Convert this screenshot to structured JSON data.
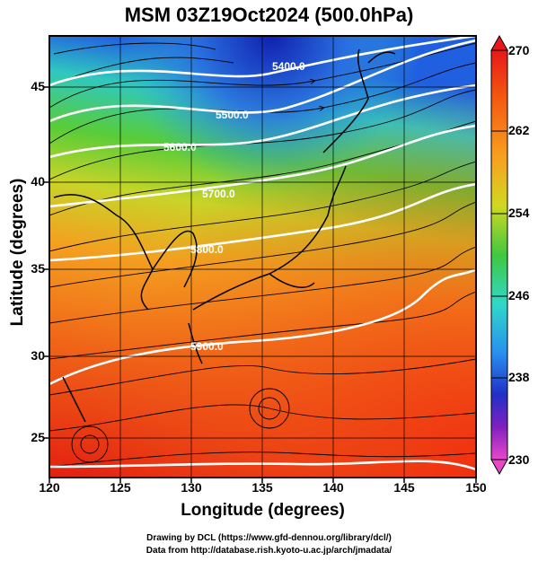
{
  "title": "MSM 03Z19Oct2024 (500.0hPa)",
  "x_axis": {
    "label": "Longitude (degrees)",
    "ticks": [
      "120",
      "125",
      "130",
      "135",
      "140",
      "145",
      "150"
    ]
  },
  "y_axis": {
    "label": "Latitude  (degrees)",
    "ticks": [
      "25",
      "30",
      "35",
      "40",
      "45"
    ]
  },
  "contour_labels": [
    "5400.0",
    "5500.0",
    "5600.0",
    "5700.0",
    "5800.0",
    "5900.0"
  ],
  "colorbar": {
    "ticks": [
      "270",
      "262",
      "254",
      "246",
      "238",
      "230"
    ],
    "colors": [
      "#e8181c",
      "#f45a10",
      "#f8a020",
      "#d8d820",
      "#48c838",
      "#30d8c0",
      "#2890f0",
      "#2030c8",
      "#c020b0",
      "#e848c8"
    ]
  },
  "credits": {
    "line1": "Drawing by DCL (https://www.gfd-dennou.org/library/dcl/)",
    "line2": "Data from http://database.rish.kyoto-u.ac.jp/arch/jmadata/"
  }
}
